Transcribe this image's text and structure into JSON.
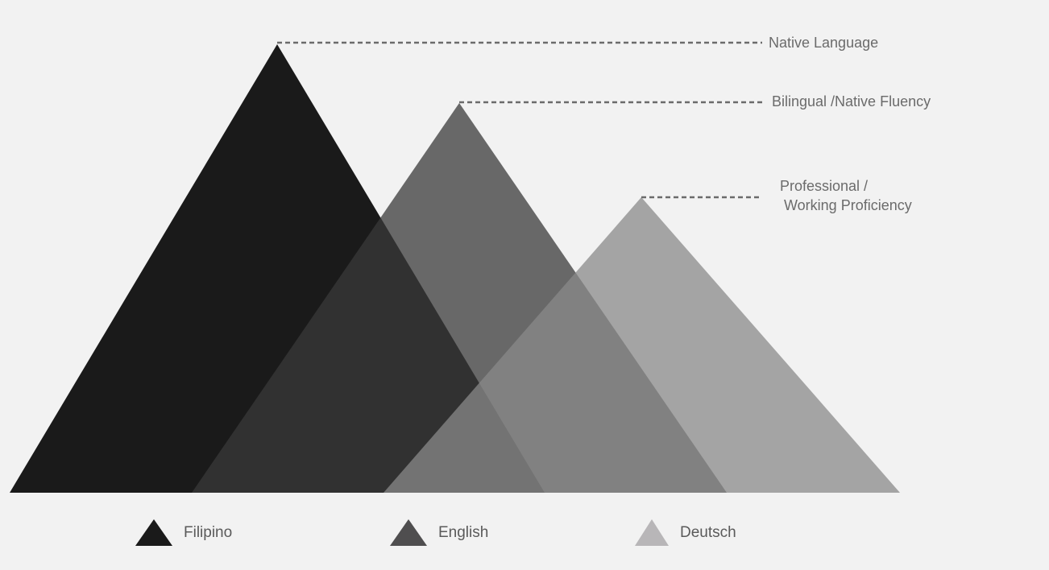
{
  "levels": {
    "native": "Native Language",
    "bilingual": "Bilingual /Native Fluency",
    "professional_line1": "Professional /",
    "professional_line2": "Working Proficiency"
  },
  "languages": [
    {
      "name": "Filipino",
      "level": "Native Language",
      "color": "#1a1a1a"
    },
    {
      "name": "English",
      "level": "Bilingual /Native Fluency",
      "color": "#4f4e4f"
    },
    {
      "name": "Deutsch",
      "level": "Professional / Working Proficiency",
      "color": "#a6a6a6"
    }
  ],
  "colors": {
    "background": "#f2f2f2",
    "dash": "#6b6b6b",
    "label": "#6b6b6b"
  }
}
